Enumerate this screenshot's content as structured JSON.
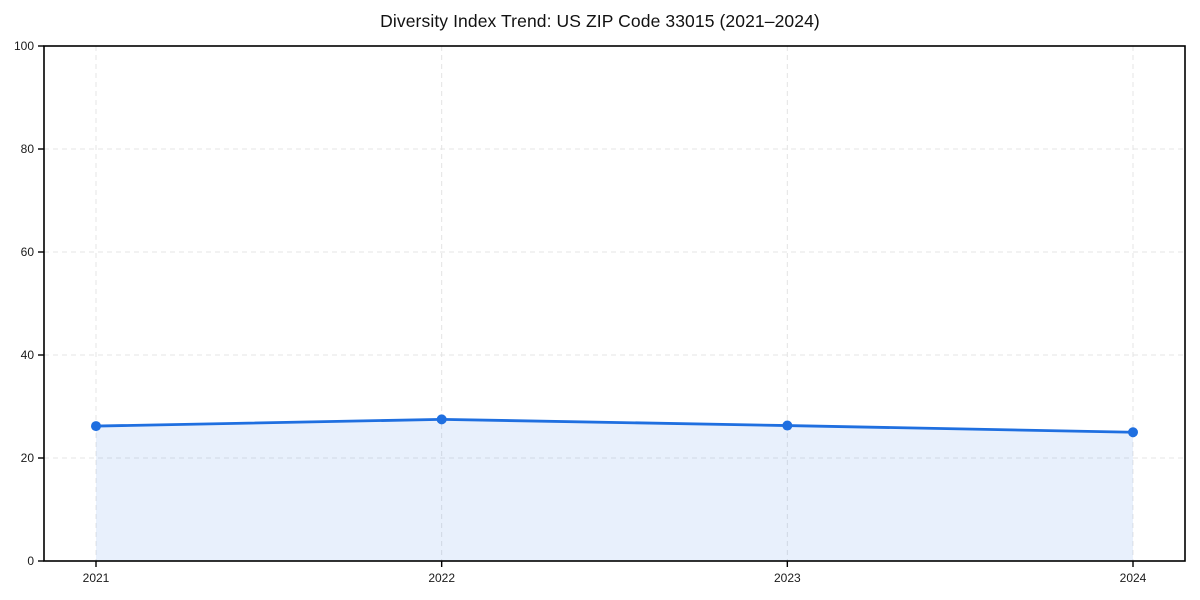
{
  "chart_data": {
    "type": "area",
    "title": "Diversity Index Trend: US ZIP Code 33015 (2021–2024)",
    "categories": [
      "2021",
      "2022",
      "2023",
      "2024"
    ],
    "series": [
      {
        "name": "Diversity Index",
        "values": [
          26.2,
          27.5,
          26.3,
          25.0
        ]
      }
    ],
    "xlabel": "",
    "ylabel": "",
    "ylim": [
      0,
      100
    ],
    "yticks": [
      0,
      20,
      40,
      60,
      80,
      100
    ],
    "grid": "dashed",
    "legend_position": "none",
    "colors": {
      "line": "#1f6fe0",
      "marker": "#1f6fe0",
      "fill": "#1f6fe0",
      "grid": "#e4e4e4",
      "axis": "#000000",
      "tick_text": "#1a1a1a",
      "title_text": "#111111",
      "background": "#ffffff"
    },
    "fill_opacity": 0.1
  }
}
